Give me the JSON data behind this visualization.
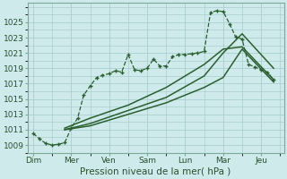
{
  "background_color": "#ceeaea",
  "grid_color": "#aacece",
  "line_color": "#2a6030",
  "title": "Pression niveau de la mer( hPa )",
  "ylabel_ticks": [
    1009,
    1011,
    1013,
    1015,
    1017,
    1019,
    1021,
    1023,
    1025
  ],
  "xlabels": [
    "Dim",
    "Mer",
    "Ven",
    "Sam",
    "Lun",
    "Mar",
    "Jeu"
  ],
  "xtick_positions": [
    0,
    1,
    2,
    3,
    4,
    5,
    6
  ],
  "ylim": [
    1008.0,
    1027.5
  ],
  "xlim": [
    -0.15,
    6.6
  ],
  "line1_x": [
    0.0,
    0.17,
    0.33,
    0.5,
    0.67,
    0.83,
    1.0,
    1.17,
    1.33,
    1.5,
    1.67,
    1.83,
    2.0,
    2.17,
    2.33,
    2.5,
    2.67,
    2.83,
    3.0,
    3.17,
    3.33,
    3.5,
    3.67,
    3.83,
    4.0,
    4.17,
    4.33,
    4.5,
    4.67,
    4.83,
    5.0,
    5.17,
    5.33,
    5.5,
    5.67,
    5.83,
    6.0,
    6.17,
    6.33
  ],
  "line1_y": [
    1010.5,
    1009.8,
    1009.2,
    1009.0,
    1009.1,
    1009.3,
    1011.2,
    1012.5,
    1015.5,
    1016.7,
    1017.8,
    1018.1,
    1018.3,
    1018.7,
    1018.5,
    1020.8,
    1018.8,
    1018.7,
    1019.0,
    1020.2,
    1019.3,
    1019.3,
    1020.5,
    1020.8,
    1020.8,
    1020.9,
    1021.0,
    1021.2,
    1026.3,
    1026.5,
    1026.4,
    1024.8,
    1023.1,
    1022.8,
    1019.5,
    1019.2,
    1018.8,
    1018.5,
    1017.5
  ],
  "line2_x": [
    0.83,
    1.5,
    2.5,
    3.5,
    4.5,
    5.0,
    5.5,
    6.33
  ],
  "line2_y": [
    1011.0,
    1011.5,
    1013.0,
    1014.5,
    1016.5,
    1017.8,
    1021.5,
    1017.2
  ],
  "line3_x": [
    0.83,
    1.5,
    2.5,
    3.5,
    4.5,
    5.0,
    5.5,
    6.33
  ],
  "line3_y": [
    1011.0,
    1011.8,
    1013.5,
    1015.2,
    1018.0,
    1021.0,
    1023.5,
    1019.0
  ],
  "line4_x": [
    0.83,
    1.5,
    2.5,
    3.5,
    4.5,
    5.0,
    5.5,
    6.33
  ],
  "line4_y": [
    1011.2,
    1012.5,
    1014.2,
    1016.5,
    1019.5,
    1021.5,
    1021.8,
    1017.5
  ]
}
